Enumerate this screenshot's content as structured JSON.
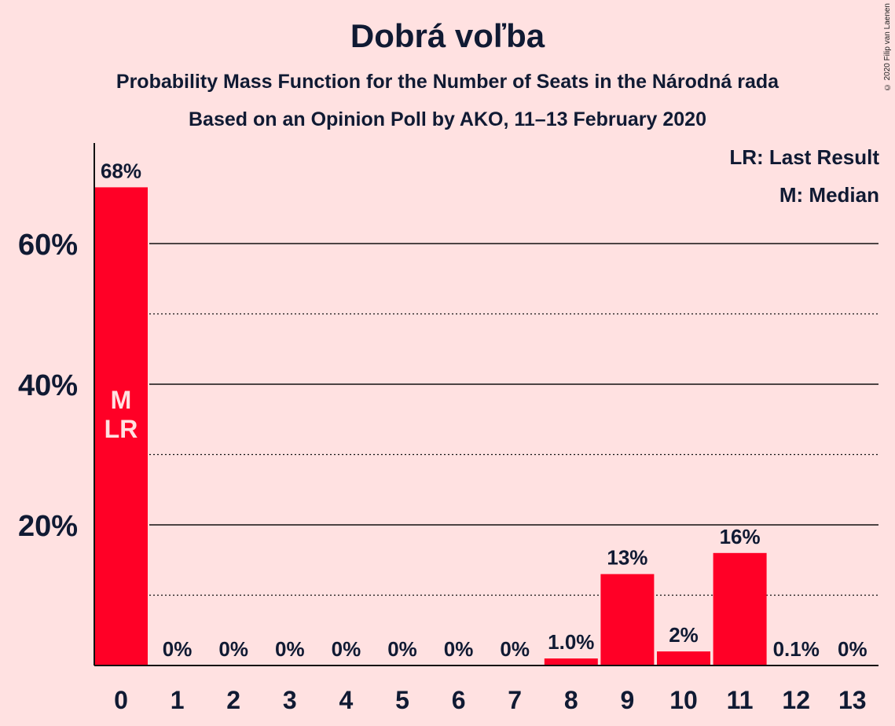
{
  "title": "Dobrá voľba",
  "subtitle": "Probability Mass Function for the Number of Seats in the Národná rada",
  "subtitle2": "Based on an Opinion Poll by AKO, 11–13 February 2020",
  "copyright": "© 2020 Filip van Laenen",
  "legend": {
    "last_result": "LR: Last Result",
    "median": "M: Median"
  },
  "colors": {
    "background": "#ffe1e1",
    "bar": "#ff0026",
    "text": "#101a33",
    "in_bar_label": "#ffe1e1"
  },
  "chart_data": {
    "type": "bar",
    "title": "Dobrá voľba",
    "xlabel": "",
    "ylabel": "",
    "categories": [
      "0",
      "1",
      "2",
      "3",
      "4",
      "5",
      "6",
      "7",
      "8",
      "9",
      "10",
      "11",
      "12",
      "13"
    ],
    "values": [
      68,
      0,
      0,
      0,
      0,
      0,
      0,
      0,
      1.0,
      13,
      2,
      16,
      0.1,
      0
    ],
    "data_labels": [
      "68%",
      "0%",
      "0%",
      "0%",
      "0%",
      "0%",
      "0%",
      "0%",
      "1.0%",
      "13%",
      "2%",
      "16%",
      "0.1%",
      "0%"
    ],
    "ylim": [
      0,
      74
    ],
    "yticks": [
      20,
      40,
      60
    ],
    "ytick_labels": [
      "20%",
      "40%",
      "60%"
    ],
    "minor_gridlines": [
      10,
      30,
      50
    ],
    "grid": true,
    "median_seat": "0",
    "last_result_seat": "0",
    "median_marker": "M",
    "last_result_marker": "LR"
  }
}
